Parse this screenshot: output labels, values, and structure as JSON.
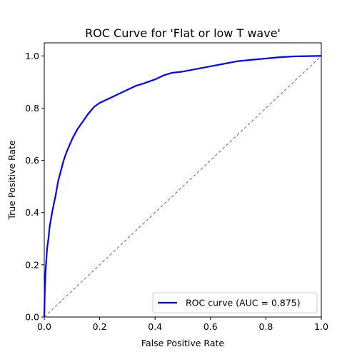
{
  "chart_data": {
    "type": "line",
    "title": "ROC Curve for 'Flat or low T wave'",
    "xlabel": "False Positive Rate",
    "ylabel": "True Positive Rate",
    "xlim": [
      0.0,
      1.0
    ],
    "ylim": [
      0.0,
      1.05
    ],
    "xticks": [
      0.0,
      0.2,
      0.4,
      0.6,
      0.8,
      1.0
    ],
    "yticks": [
      0.0,
      0.2,
      0.4,
      0.6,
      0.8,
      1.0
    ],
    "xtick_labels": [
      "0.0",
      "0.2",
      "0.4",
      "0.6",
      "0.8",
      "1.0"
    ],
    "ytick_labels": [
      "0.0",
      "0.2",
      "0.4",
      "0.6",
      "0.8",
      "1.0"
    ],
    "grid": false,
    "legend_position": "lower-right",
    "series": [
      {
        "name": "ROC curve (AUC = 0.875)",
        "color": "#0000ff",
        "style": "solid",
        "x": [
          0.0,
          0.002,
          0.005,
          0.01,
          0.015,
          0.02,
          0.03,
          0.04,
          0.05,
          0.06,
          0.07,
          0.08,
          0.1,
          0.12,
          0.14,
          0.16,
          0.18,
          0.2,
          0.22,
          0.25,
          0.28,
          0.3,
          0.33,
          0.36,
          0.4,
          0.43,
          0.46,
          0.5,
          0.55,
          0.6,
          0.65,
          0.7,
          0.75,
          0.8,
          0.85,
          0.9,
          0.95,
          1.0
        ],
        "y": [
          0.0,
          0.1,
          0.18,
          0.26,
          0.3,
          0.35,
          0.41,
          0.46,
          0.52,
          0.56,
          0.6,
          0.63,
          0.68,
          0.72,
          0.75,
          0.78,
          0.805,
          0.82,
          0.83,
          0.845,
          0.86,
          0.87,
          0.885,
          0.895,
          0.91,
          0.925,
          0.935,
          0.94,
          0.95,
          0.96,
          0.97,
          0.98,
          0.985,
          0.99,
          0.995,
          0.998,
          0.999,
          1.0
        ]
      }
    ],
    "reference_line": {
      "x": [
        0.0,
        1.0
      ],
      "y": [
        0.0,
        1.0
      ],
      "color": "#808080",
      "style": "dashed"
    },
    "legend_label": "ROC curve (AUC = 0.875)"
  }
}
